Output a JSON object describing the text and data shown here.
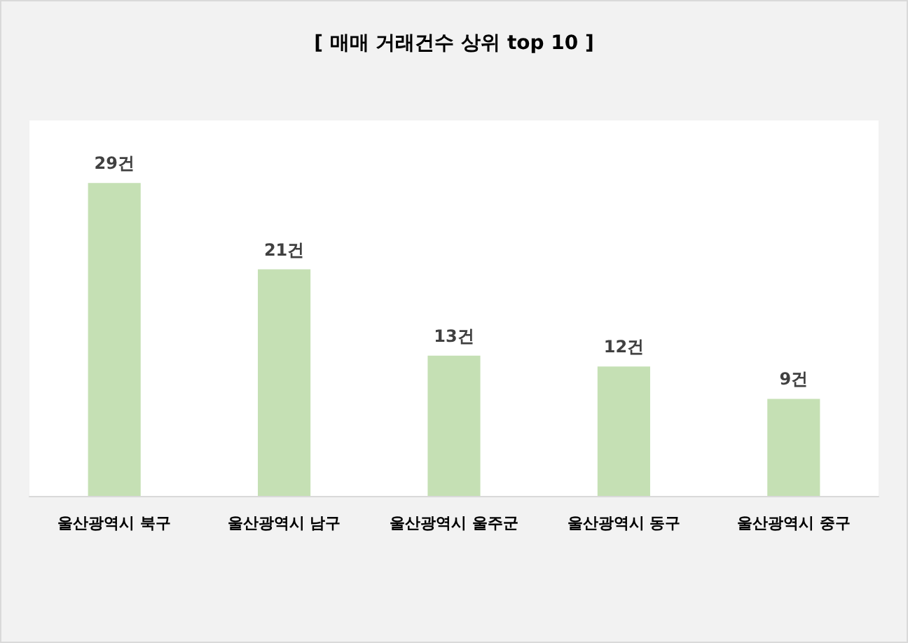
{
  "chart_data": {
    "type": "bar",
    "title": "[ 매매 거래건수 상위 top 10 ]",
    "categories": [
      "울산광역시 북구",
      "울산광역시 남구",
      "울산광역시 울주군",
      "울산광역시 동구",
      "울산광역시 중구"
    ],
    "values": [
      29,
      21,
      13,
      12,
      9
    ],
    "value_labels": [
      "29건",
      "21건",
      "13건",
      "12건",
      "9건"
    ],
    "color": "#c5e0b4"
  }
}
